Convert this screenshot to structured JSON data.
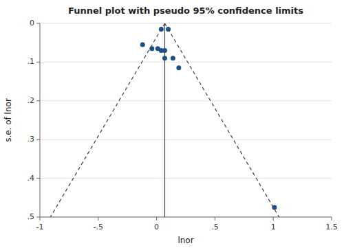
{
  "chart_data": {
    "type": "scatter",
    "title": "Funnel plot with pseudo 95% confidence limits",
    "x_label": "lnor",
    "y_label": "s.e. of lnor",
    "xlim": [
      -1,
      1.5
    ],
    "ylim": [
      0.5,
      0
    ],
    "xticks": [
      -1,
      {
        "value": -0.5,
        "label": "-.5"
      },
      0,
      {
        "value": 0.5,
        "label": ".5"
      },
      1,
      1.5
    ],
    "yticks": [
      0,
      {
        "value": 0.1,
        "label": ".1"
      },
      {
        "value": 0.2,
        "label": ".2"
      },
      {
        "value": 0.3,
        "label": ".3"
      },
      {
        "value": 0.4,
        "label": ".4"
      },
      {
        "value": 0.5,
        "label": ".5"
      }
    ],
    "grid": true,
    "series": [
      {
        "type": "scatter",
        "marker": "circle",
        "color": "#1c4f82",
        "x": [
          0.04,
          0.1,
          -0.12,
          -0.04,
          0.01,
          0.04,
          0.07,
          0.07,
          0.14,
          0.19,
          1.01
        ],
        "values": [
          0.015,
          0.015,
          0.055,
          0.065,
          0.065,
          0.07,
          0.07,
          0.09,
          0.09,
          0.115,
          0.475
        ]
      },
      {
        "type": "line",
        "line_style": "dashed",
        "color": "#444444",
        "x": [
          0.07,
          -0.91
        ],
        "values": [
          0,
          0.5
        ]
      },
      {
        "type": "line",
        "line_style": "dashed",
        "color": "#444444",
        "x": [
          0.07,
          1.05
        ],
        "values": [
          0,
          0.5
        ]
      },
      {
        "type": "line",
        "line_style": "solid",
        "color": "#444444",
        "x": [
          0.07,
          0.07
        ],
        "values": [
          0.5,
          0
        ]
      }
    ]
  }
}
